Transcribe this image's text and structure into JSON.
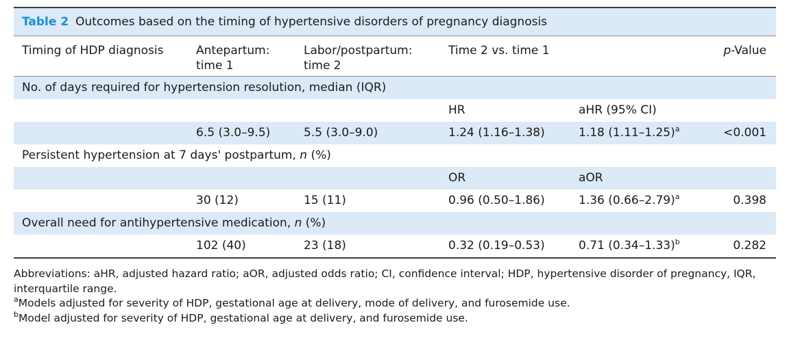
{
  "caption": {
    "label": "Table 2",
    "title": "Outcomes based on the timing of hypertensive disorders of pregnancy diagnosis"
  },
  "headers": {
    "col1": "Timing of HDP diagnosis",
    "col2_line1": "Antepartum:",
    "col2_line2": "time 1",
    "col3_line1": "Labor/postpartum:",
    "col3_line2": "time 2",
    "col4": "Time 2 vs. time 1",
    "col6_italic": "p",
    "col6_rest": "-Value"
  },
  "section1": {
    "title": "No. of days required for hypertension resolution, median (IQR)",
    "sub_label_a": "HR",
    "sub_label_b": "aHR (95% CI)",
    "time1": "6.5 (3.0–9.5)",
    "time2": "5.5 (3.0–9.0)",
    "effect": "1.24 (1.16–1.38)",
    "adjusted": "1.18 (1.11–1.25)",
    "adjusted_sup": "a",
    "pvalue": "<0.001"
  },
  "section2": {
    "title_before": "Persistent hypertension at 7 days' postpartum, ",
    "title_italic": "n",
    "title_after": " (%)",
    "sub_label_a": "OR",
    "sub_label_b": "aOR",
    "time1": "30 (12)",
    "time2": "15 (11)",
    "effect": "0.96 (0.50–1.86)",
    "adjusted": "1.36 (0.66–2.79)",
    "adjusted_sup": "a",
    "pvalue": "0.398"
  },
  "section3": {
    "title_before": "Overall need for antihypertensive medication, ",
    "title_italic": "n",
    "title_after": " (%)",
    "time1": "102 (40)",
    "time2": "23 (18)",
    "effect": "0.32 (0.19–0.53)",
    "adjusted": "0.71 (0.34–1.33)",
    "adjusted_sup": "b",
    "pvalue": "0.282"
  },
  "footnotes": {
    "abbreviations": "Abbreviations: aHR, adjusted hazard ratio; aOR, adjusted odds ratio; CI, confidence interval; HDP, hypertensive disorder of pregnancy, IQR, interquartile range.",
    "note_a_mark": "a",
    "note_a": "Models adjusted for severity of HDP, gestational age at delivery, mode of delivery, and furosemide use.",
    "note_b_mark": "b",
    "note_b": "Model adjusted for severity of HDP, gestational age at delivery, and furosemide use."
  }
}
